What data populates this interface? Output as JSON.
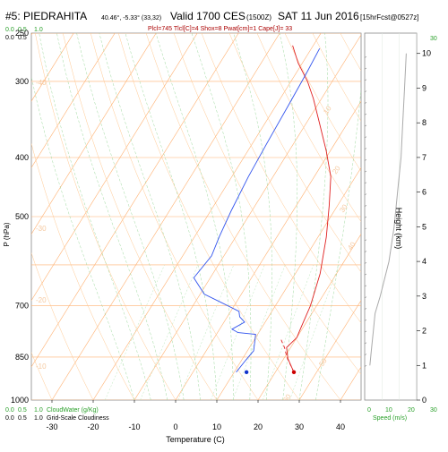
{
  "header": {
    "station": "#5: PIEDRAHITA",
    "coords": "40.46°, -5.33° (33,32)",
    "valid": "Valid 1700 CES",
    "utc": "(1500Z)",
    "date": "SAT 11 Jun 2016",
    "forecast": "[15hrFcst@0527z]",
    "params": "Plcl=745 Tlcl[C]=4 Shox=8 Pwat[cm]=1 Cape[J]= 33"
  },
  "legend": {
    "cloud_scale_ticks": [
      "0.0",
      "0.5",
      "1.0"
    ],
    "cloudwater_ticks": [
      "0.0",
      "0.5",
      "1.0"
    ],
    "cloudwater_label": "CloudWater (g/Kg)",
    "cloudiness_ticks": [
      "0.0",
      "0.5",
      "1.0"
    ],
    "cloudiness_label": "Grid-Scale Cloudiness",
    "speed_top_ticks": [
      "0",
      "10",
      "20",
      "30"
    ],
    "speed_bottom_ticks": [
      "0",
      "10",
      "20",
      "30"
    ],
    "speed_label": "Speed (m/s)"
  },
  "colors": {
    "temperature": "#e02020",
    "dewpoint": "#3355ee",
    "isobar": "#ffb070",
    "isotherm": "#ffb070",
    "dry_adiabat": "#ffc890",
    "moist_adiabat": "#9ed99e",
    "mixing_ratio": "#b8e6b8",
    "surface_dew_marker": "#1133cc",
    "surface_temp_marker": "#cc0000",
    "green_text": "#2aa02a",
    "header_red": "#aa0000"
  },
  "chart_data": {
    "type": "line",
    "title": "#5: PIEDRAHITA",
    "xlabel": "Temperature (C)",
    "ylabel": "P (hPa)",
    "y2label": "Height (km)",
    "x_ticks": [
      -30,
      -20,
      -10,
      0,
      10,
      20,
      30,
      40
    ],
    "y_ticks": [
      250,
      300,
      400,
      500,
      700,
      850,
      1000
    ],
    "y2_ticks": [
      0,
      1,
      2,
      3,
      4,
      5,
      6,
      7,
      8,
      9,
      10
    ],
    "xlim": [
      -35,
      45
    ],
    "ylim": [
      1000,
      250
    ],
    "y_scale": "log",
    "series": [
      {
        "key": "temperature",
        "points": [
          [
            24.5,
            900
          ],
          [
            21,
            855
          ],
          [
            19,
            820
          ],
          [
            20,
            790
          ],
          [
            19.5,
            760
          ],
          [
            18.5,
            700
          ],
          [
            16,
            620
          ],
          [
            12,
            540
          ],
          [
            8,
            480
          ],
          [
            4,
            430
          ],
          [
            -1,
            390
          ],
          [
            -7,
            350
          ],
          [
            -12,
            320
          ],
          [
            -16,
            300
          ],
          [
            -21,
            280
          ],
          [
            -25,
            262
          ]
        ]
      },
      {
        "key": "dewpoint",
        "points": [
          [
            10.5,
            900
          ],
          [
            11,
            860
          ],
          [
            11.5,
            830
          ],
          [
            9.5,
            780
          ],
          [
            5,
            775
          ],
          [
            3,
            765
          ],
          [
            5,
            745
          ],
          [
            3,
            730
          ],
          [
            2,
            715
          ],
          [
            -4,
            690
          ],
          [
            -9,
            670
          ],
          [
            -14,
            630
          ],
          [
            -13,
            580
          ],
          [
            -14,
            540
          ],
          [
            -15,
            490
          ],
          [
            -16,
            430
          ],
          [
            -16.5,
            380
          ],
          [
            -17,
            330
          ],
          [
            -17.5,
            290
          ],
          [
            -18,
            265
          ]
        ]
      },
      {
        "key": "parcel",
        "points": [
          [
            24.5,
            900
          ],
          [
            20.5,
            850
          ],
          [
            18.5,
            820
          ],
          [
            16,
            790
          ]
        ]
      }
    ],
    "surface_markers": [
      {
        "key": "dewpoint",
        "x": 13,
        "p": 900
      },
      {
        "key": "temperature",
        "x": 24.5,
        "p": 900
      }
    ],
    "isotherm_labels": [
      "-40",
      "-30",
      "-20",
      "-10",
      "0",
      "10",
      "20",
      "30",
      "40"
    ],
    "dry_adiabat_labels": [
      "10",
      "20",
      "30",
      "40",
      "50",
      "60",
      "70"
    ],
    "height_profile_km": [
      0,
      1,
      2,
      3,
      4,
      5,
      6,
      7,
      8,
      9,
      10
    ],
    "wind_speed_profile": [
      {
        "km": 1.0,
        "speed": 3
      },
      {
        "km": 1.5,
        "speed": 4
      },
      {
        "km": 2.0,
        "speed": 5
      },
      {
        "km": 2.5,
        "speed": 6
      },
      {
        "km": 3.0,
        "speed": 9
      },
      {
        "km": 4.0,
        "speed": 14
      },
      {
        "km": 5.0,
        "speed": 17
      },
      {
        "km": 6.0,
        "speed": 19
      },
      {
        "km": 7.0,
        "speed": 21
      },
      {
        "km": 8.0,
        "speed": 22
      },
      {
        "km": 9.0,
        "speed": 23
      },
      {
        "km": 10.0,
        "speed": 24
      }
    ]
  }
}
